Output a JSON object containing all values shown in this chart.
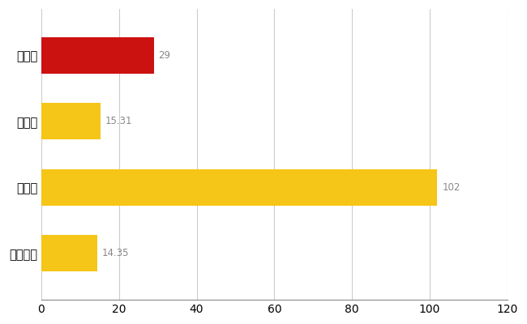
{
  "categories": [
    "沼津市",
    "県平均",
    "県最大",
    "全国平均"
  ],
  "values": [
    29,
    15.31,
    102,
    14.35
  ],
  "bar_colors": [
    "#cc1111",
    "#f5c518",
    "#f5c518",
    "#f5c518"
  ],
  "value_labels": [
    "29",
    "15.31",
    "102",
    "14.35"
  ],
  "xlim": [
    0,
    120
  ],
  "xticks": [
    0,
    20,
    40,
    60,
    80,
    100,
    120
  ],
  "label_color": "#888888",
  "grid_color": "#cccccc",
  "background_color": "#ffffff",
  "bar_height": 0.55,
  "label_fontsize": 10.5,
  "tick_fontsize": 10,
  "value_fontsize": 8.5
}
